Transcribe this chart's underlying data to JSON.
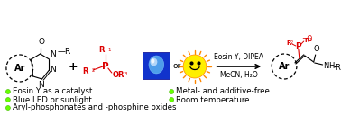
{
  "bg_color": "#ffffff",
  "bullet_color": "#66ff00",
  "bullet_left": [
    "Eosin Y as a catalyst",
    "Blue LED or sunlight",
    "Aryl-phosphonates and -phosphine oxides"
  ],
  "bullet_right": [
    "Metal- and additive-free",
    "Room temperature"
  ],
  "arrow_label_top": "Eosin Y, DIPEA",
  "arrow_label_bot": "MeCN, H₂O",
  "red_color": "#dd0000",
  "black_color": "#000000",
  "blue_box_color": "#1133cc",
  "sun_color": "#ffee00",
  "sun_ray_color": "#ff8800",
  "font_size_bullet": 6.2,
  "font_size_chem": 6.5
}
